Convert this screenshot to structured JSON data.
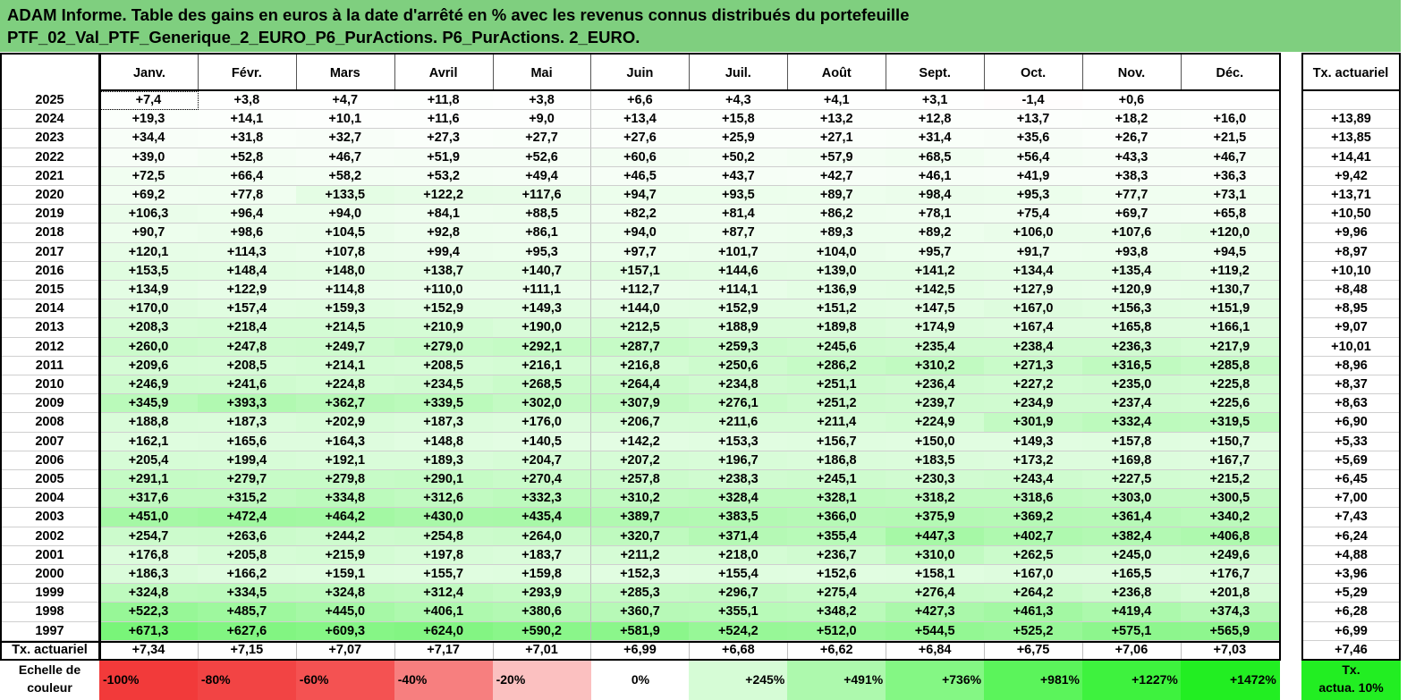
{
  "title": {
    "line1": "ADAM Informe. Table des gains en euros à la date d'arrêté en % avec les revenus connus distribués du portefeuille",
    "line2": "PTF_02_Val_PTF_Generique_2_EURO_P6_PurActions. P6_PurActions. 2_EURO."
  },
  "chart_data": {
    "type": "heatmap",
    "title": "ADAM Informe. Table des gains en euros à la date d'arrêté en % avec les revenus connus distribués du portefeuille PTF_02_Val_PTF_Generique_2_EURO_P6_PurActions. P6_PurActions. 2_EURO.",
    "months": [
      "Janv.",
      "Févr.",
      "Mars",
      "Avril",
      "Mai",
      "Juin",
      "Juil.",
      "Août",
      "Sept.",
      "Oct.",
      "Nov.",
      "Déc."
    ],
    "tx_header": "Tx. actuariel",
    "rows": [
      {
        "year": "2025",
        "values": [
          "+7,4",
          "+3,8",
          "+4,7",
          "+11,8",
          "+3,8",
          "+6,6",
          "+4,3",
          "+4,1",
          "+3,1",
          "-1,4",
          "+0,6",
          ""
        ],
        "tx": ""
      },
      {
        "year": "2024",
        "values": [
          "+19,3",
          "+14,1",
          "+10,1",
          "+11,6",
          "+9,0",
          "+13,4",
          "+15,8",
          "+13,2",
          "+12,8",
          "+13,7",
          "+18,2",
          "+16,0"
        ],
        "tx": "+13,89"
      },
      {
        "year": "2023",
        "values": [
          "+34,4",
          "+31,8",
          "+32,7",
          "+27,3",
          "+27,7",
          "+27,6",
          "+25,9",
          "+27,1",
          "+31,4",
          "+35,6",
          "+26,7",
          "+21,5"
        ],
        "tx": "+13,85"
      },
      {
        "year": "2022",
        "values": [
          "+39,0",
          "+52,8",
          "+46,7",
          "+51,9",
          "+52,6",
          "+60,6",
          "+50,2",
          "+57,9",
          "+68,5",
          "+56,4",
          "+43,3",
          "+46,7"
        ],
        "tx": "+14,41"
      },
      {
        "year": "2021",
        "values": [
          "+72,5",
          "+66,4",
          "+58,2",
          "+53,2",
          "+49,4",
          "+46,5",
          "+43,7",
          "+42,7",
          "+46,1",
          "+41,9",
          "+38,3",
          "+36,3"
        ],
        "tx": "+9,42"
      },
      {
        "year": "2020",
        "values": [
          "+69,2",
          "+77,8",
          "+133,5",
          "+122,2",
          "+117,6",
          "+94,7",
          "+93,5",
          "+89,7",
          "+98,4",
          "+95,3",
          "+77,7",
          "+73,1"
        ],
        "tx": "+13,71"
      },
      {
        "year": "2019",
        "values": [
          "+106,3",
          "+96,4",
          "+94,0",
          "+84,1",
          "+88,5",
          "+82,2",
          "+81,4",
          "+86,2",
          "+78,1",
          "+75,4",
          "+69,7",
          "+65,8"
        ],
        "tx": "+10,50"
      },
      {
        "year": "2018",
        "values": [
          "+90,7",
          "+98,6",
          "+104,5",
          "+92,8",
          "+86,1",
          "+94,0",
          "+87,7",
          "+89,3",
          "+89,2",
          "+106,0",
          "+107,6",
          "+120,0"
        ],
        "tx": "+9,96"
      },
      {
        "year": "2017",
        "values": [
          "+120,1",
          "+114,3",
          "+107,8",
          "+99,4",
          "+95,3",
          "+97,7",
          "+101,7",
          "+104,0",
          "+95,7",
          "+91,7",
          "+93,8",
          "+94,5"
        ],
        "tx": "+8,97"
      },
      {
        "year": "2016",
        "values": [
          "+153,5",
          "+148,4",
          "+148,0",
          "+138,7",
          "+140,7",
          "+157,1",
          "+144,6",
          "+139,0",
          "+141,2",
          "+134,4",
          "+135,4",
          "+119,2"
        ],
        "tx": "+10,10"
      },
      {
        "year": "2015",
        "values": [
          "+134,9",
          "+122,9",
          "+114,8",
          "+110,0",
          "+111,1",
          "+112,7",
          "+114,1",
          "+136,9",
          "+142,5",
          "+127,9",
          "+120,9",
          "+130,7"
        ],
        "tx": "+8,48"
      },
      {
        "year": "2014",
        "values": [
          "+170,0",
          "+157,4",
          "+159,3",
          "+152,9",
          "+149,3",
          "+144,0",
          "+152,9",
          "+151,2",
          "+147,5",
          "+167,0",
          "+156,3",
          "+151,9"
        ],
        "tx": "+8,95"
      },
      {
        "year": "2013",
        "values": [
          "+208,3",
          "+218,4",
          "+214,5",
          "+210,9",
          "+190,0",
          "+212,5",
          "+188,9",
          "+189,8",
          "+174,9",
          "+167,4",
          "+165,8",
          "+166,1"
        ],
        "tx": "+9,07"
      },
      {
        "year": "2012",
        "values": [
          "+260,0",
          "+247,8",
          "+249,7",
          "+279,0",
          "+292,1",
          "+287,7",
          "+259,3",
          "+245,6",
          "+235,4",
          "+238,4",
          "+236,3",
          "+217,9"
        ],
        "tx": "+10,01"
      },
      {
        "year": "2011",
        "values": [
          "+209,6",
          "+208,5",
          "+214,1",
          "+208,5",
          "+216,1",
          "+216,8",
          "+250,6",
          "+286,2",
          "+310,2",
          "+271,3",
          "+316,5",
          "+285,8"
        ],
        "tx": "+8,96"
      },
      {
        "year": "2010",
        "values": [
          "+246,9",
          "+241,6",
          "+224,8",
          "+234,5",
          "+268,5",
          "+264,4",
          "+234,8",
          "+251,1",
          "+236,4",
          "+227,2",
          "+235,0",
          "+225,8"
        ],
        "tx": "+8,37"
      },
      {
        "year": "2009",
        "values": [
          "+345,9",
          "+393,3",
          "+362,7",
          "+339,5",
          "+302,0",
          "+307,9",
          "+276,1",
          "+251,2",
          "+239,7",
          "+234,9",
          "+237,4",
          "+225,6"
        ],
        "tx": "+8,63"
      },
      {
        "year": "2008",
        "values": [
          "+188,8",
          "+187,3",
          "+202,9",
          "+187,3",
          "+176,0",
          "+206,7",
          "+211,6",
          "+211,4",
          "+224,9",
          "+301,9",
          "+332,4",
          "+319,5"
        ],
        "tx": "+6,90"
      },
      {
        "year": "2007",
        "values": [
          "+162,1",
          "+165,6",
          "+164,3",
          "+148,8",
          "+140,5",
          "+142,2",
          "+153,3",
          "+156,7",
          "+150,0",
          "+149,3",
          "+157,8",
          "+150,7"
        ],
        "tx": "+5,33"
      },
      {
        "year": "2006",
        "values": [
          "+205,4",
          "+199,4",
          "+192,1",
          "+189,3",
          "+204,7",
          "+207,2",
          "+196,7",
          "+186,8",
          "+183,5",
          "+173,2",
          "+169,8",
          "+167,7"
        ],
        "tx": "+5,69"
      },
      {
        "year": "2005",
        "values": [
          "+291,1",
          "+279,7",
          "+279,8",
          "+290,1",
          "+270,4",
          "+257,8",
          "+238,3",
          "+245,1",
          "+230,3",
          "+243,4",
          "+227,5",
          "+215,2"
        ],
        "tx": "+6,45"
      },
      {
        "year": "2004",
        "values": [
          "+317,6",
          "+315,2",
          "+334,8",
          "+312,6",
          "+332,3",
          "+310,2",
          "+328,4",
          "+328,1",
          "+318,2",
          "+318,6",
          "+303,0",
          "+300,5"
        ],
        "tx": "+7,00"
      },
      {
        "year": "2003",
        "values": [
          "+451,0",
          "+472,4",
          "+464,2",
          "+430,0",
          "+435,4",
          "+389,7",
          "+383,5",
          "+366,0",
          "+375,9",
          "+369,2",
          "+361,4",
          "+340,2"
        ],
        "tx": "+7,43"
      },
      {
        "year": "2002",
        "values": [
          "+254,7",
          "+263,6",
          "+244,2",
          "+254,8",
          "+264,0",
          "+320,7",
          "+371,4",
          "+355,4",
          "+447,3",
          "+402,7",
          "+382,4",
          "+406,8"
        ],
        "tx": "+6,24"
      },
      {
        "year": "2001",
        "values": [
          "+176,8",
          "+205,8",
          "+215,9",
          "+197,8",
          "+183,7",
          "+211,2",
          "+218,0",
          "+236,7",
          "+310,0",
          "+262,5",
          "+245,0",
          "+249,6"
        ],
        "tx": "+4,88"
      },
      {
        "year": "2000",
        "values": [
          "+186,3",
          "+166,2",
          "+159,1",
          "+155,7",
          "+159,8",
          "+152,3",
          "+155,4",
          "+152,6",
          "+158,1",
          "+167,0",
          "+165,5",
          "+176,7"
        ],
        "tx": "+3,96"
      },
      {
        "year": "1999",
        "values": [
          "+324,8",
          "+334,5",
          "+324,8",
          "+312,4",
          "+293,9",
          "+285,3",
          "+296,7",
          "+275,4",
          "+276,4",
          "+264,2",
          "+236,8",
          "+201,8"
        ],
        "tx": "+5,29"
      },
      {
        "year": "1998",
        "values": [
          "+522,3",
          "+485,7",
          "+445,0",
          "+406,1",
          "+380,6",
          "+360,7",
          "+355,1",
          "+348,2",
          "+427,3",
          "+461,3",
          "+419,4",
          "+374,3"
        ],
        "tx": "+6,28"
      },
      {
        "year": "1997",
        "values": [
          "+671,3",
          "+627,6",
          "+609,3",
          "+624,0",
          "+590,2",
          "+581,9",
          "+524,2",
          "+512,0",
          "+544,5",
          "+525,2",
          "+575,1",
          "+565,9"
        ],
        "tx": "+6,99"
      }
    ],
    "footer": {
      "label": "Tx. actuariel",
      "values": [
        "+7,34",
        "+7,15",
        "+7,07",
        "+7,17",
        "+7,01",
        "+6,99",
        "+6,68",
        "+6,62",
        "+6,84",
        "+6,75",
        "+7,06",
        "+7,03"
      ],
      "tx": "+7,46"
    },
    "color_scale": {
      "label_line1": "Echelle de",
      "label_line2": "couleur",
      "stops": [
        {
          "label": "-100%",
          "color": "#f23a3a"
        },
        {
          "label": "-80%",
          "color": "#f24444"
        },
        {
          "label": "-60%",
          "color": "#f45252"
        },
        {
          "label": "-40%",
          "color": "#f77f7f"
        },
        {
          "label": "-20%",
          "color": "#fbc0c0"
        },
        {
          "label": "0%",
          "color": "#ffffff"
        },
        {
          "label": "+245%",
          "color": "#d6fcd6"
        },
        {
          "label": "+491%",
          "color": "#adf9ad"
        },
        {
          "label": "+736%",
          "color": "#84f784"
        },
        {
          "label": "+981%",
          "color": "#5bf45b"
        },
        {
          "label": "+1227%",
          "color": "#3ef23e"
        },
        {
          "label": "+1472%",
          "color": "#22ee22"
        }
      ],
      "tx_label_line1": "Tx.",
      "tx_label_line2": "actua. 10%",
      "tx_color": "#22ee22"
    },
    "colors": {
      "title_bg": "#7fcf7f",
      "negative_max": "#f23a3a",
      "positive_max": "#22ee22"
    }
  }
}
